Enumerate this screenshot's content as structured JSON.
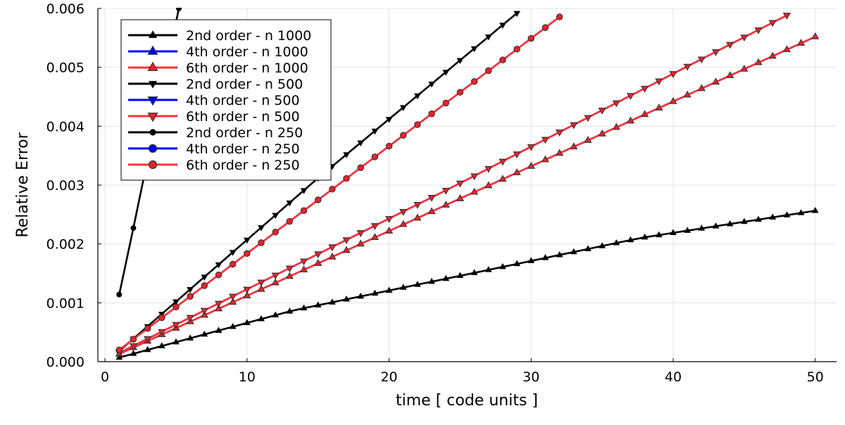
{
  "chart_data": {
    "type": "line",
    "title": "",
    "xlabel": "time [ code units ]",
    "ylabel": "Relative Error",
    "xlim": [
      -0.5,
      51.5
    ],
    "ylim": [
      0,
      0.006
    ],
    "xticks": [
      0,
      10,
      20,
      30,
      40,
      50
    ],
    "xtick_labels": [
      "0",
      "10",
      "20",
      "30",
      "40",
      "50"
    ],
    "yticks": [
      0,
      0.001,
      0.002,
      0.003,
      0.004,
      0.005,
      0.006
    ],
    "ytick_labels": [
      "0.000",
      "0.001",
      "0.002",
      "0.003",
      "0.004",
      "0.005",
      "0.006"
    ],
    "grid": true,
    "legend_position": "top-left",
    "series": [
      {
        "name": "2nd order - n 1000",
        "color": "#000000",
        "marker": "triangle-up",
        "start": 1,
        "end": 50,
        "base": [
          7e-05,
          7e-05
        ],
        "rates": [
          6.54e-05,
          5e-05,
          5.06e-05,
          3.76e-05
        ]
      },
      {
        "name": "4th order - n 1000",
        "color": "#0000ff",
        "marker": "triangle-up",
        "start": 1,
        "end": 50,
        "base": [
          0.00013,
          0.00013
        ],
        "rates": [
          0.00011,
          0.00011
        ]
      },
      {
        "name": "6th order - n 1000",
        "color": "#ff3333",
        "marker": "triangle-up",
        "start": 1,
        "end": 50,
        "base": [
          0.00013,
          0.00013
        ],
        "rates": [
          0.00011,
          0.00011
        ]
      },
      {
        "name": "2nd order - n 500",
        "color": "#000000",
        "marker": "triangle-down",
        "start": 1,
        "end": 29,
        "base": [
          0.00018,
          0.00018
        ],
        "rates": [
          0.00021,
          0.0002
        ]
      },
      {
        "name": "4th order - n 500",
        "color": "#0000ff",
        "marker": "triangle-down",
        "start": 1,
        "end": 48,
        "base": [
          0.00015,
          0.00015
        ],
        "rates": [
          0.00012,
          0.000124
        ]
      },
      {
        "name": "6th order - n 500",
        "color": "#ff3333",
        "marker": "triangle-down",
        "start": 1,
        "end": 48,
        "base": [
          0.00015,
          0.00015
        ],
        "rates": [
          0.00012,
          0.000124
        ]
      },
      {
        "name": "2nd order - n 250",
        "color": "#000000",
        "marker": "circle",
        "start": 1,
        "end": 5.2,
        "points": [
          [
            1,
            0.00114
          ],
          [
            2,
            0.00227
          ],
          [
            5.2,
            0.006
          ]
        ]
      },
      {
        "name": "4th order - n 250",
        "color": "#0000ff",
        "marker": "circle",
        "start": 1,
        "end": 32,
        "base": [
          0.0002,
          0.0002
        ],
        "rates": [
          0.000182,
          0.000183
        ]
      },
      {
        "name": "6th order - n 250",
        "color": "#ff3333",
        "marker": "circle",
        "start": 1,
        "end": 32,
        "base": [
          0.0002,
          0.0002
        ],
        "rates": [
          0.000182,
          0.000183
        ]
      }
    ]
  }
}
